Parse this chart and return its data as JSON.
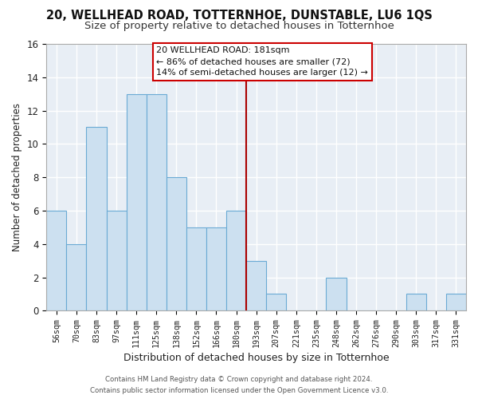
{
  "title": "20, WELLHEAD ROAD, TOTTERNHOE, DUNSTABLE, LU6 1QS",
  "subtitle": "Size of property relative to detached houses in Totternhoe",
  "xlabel": "Distribution of detached houses by size in Totternhoe",
  "ylabel": "Number of detached properties",
  "footer_line1": "Contains HM Land Registry data © Crown copyright and database right 2024.",
  "footer_line2": "Contains public sector information licensed under the Open Government Licence v3.0.",
  "bar_labels": [
    "56sqm",
    "70sqm",
    "83sqm",
    "97sqm",
    "111sqm",
    "125sqm",
    "138sqm",
    "152sqm",
    "166sqm",
    "180sqm",
    "193sqm",
    "207sqm",
    "221sqm",
    "235sqm",
    "248sqm",
    "262sqm",
    "276sqm",
    "290sqm",
    "303sqm",
    "317sqm",
    "331sqm"
  ],
  "bar_values": [
    6,
    4,
    11,
    6,
    13,
    13,
    8,
    5,
    5,
    6,
    3,
    1,
    0,
    0,
    2,
    0,
    0,
    0,
    1,
    0,
    1
  ],
  "bar_color": "#cce0f0",
  "bar_edge_color": "#6aaad4",
  "vline_color": "#aa0000",
  "annotation_title": "20 WELLHEAD ROAD: 181sqm",
  "annotation_line1": "← 86% of detached houses are smaller (72)",
  "annotation_line2": "14% of semi-detached houses are larger (12) →",
  "annotation_box_facecolor": "#ffffff",
  "annotation_box_edgecolor": "#cc0000",
  "ylim": [
    0,
    16
  ],
  "yticks": [
    0,
    2,
    4,
    6,
    8,
    10,
    12,
    14,
    16
  ],
  "fig_bg_color": "#ffffff",
  "axes_bg_color": "#e8eef5",
  "grid_color": "#ffffff",
  "title_fontsize": 10.5,
  "subtitle_fontsize": 9.5,
  "vline_x_index": 9
}
